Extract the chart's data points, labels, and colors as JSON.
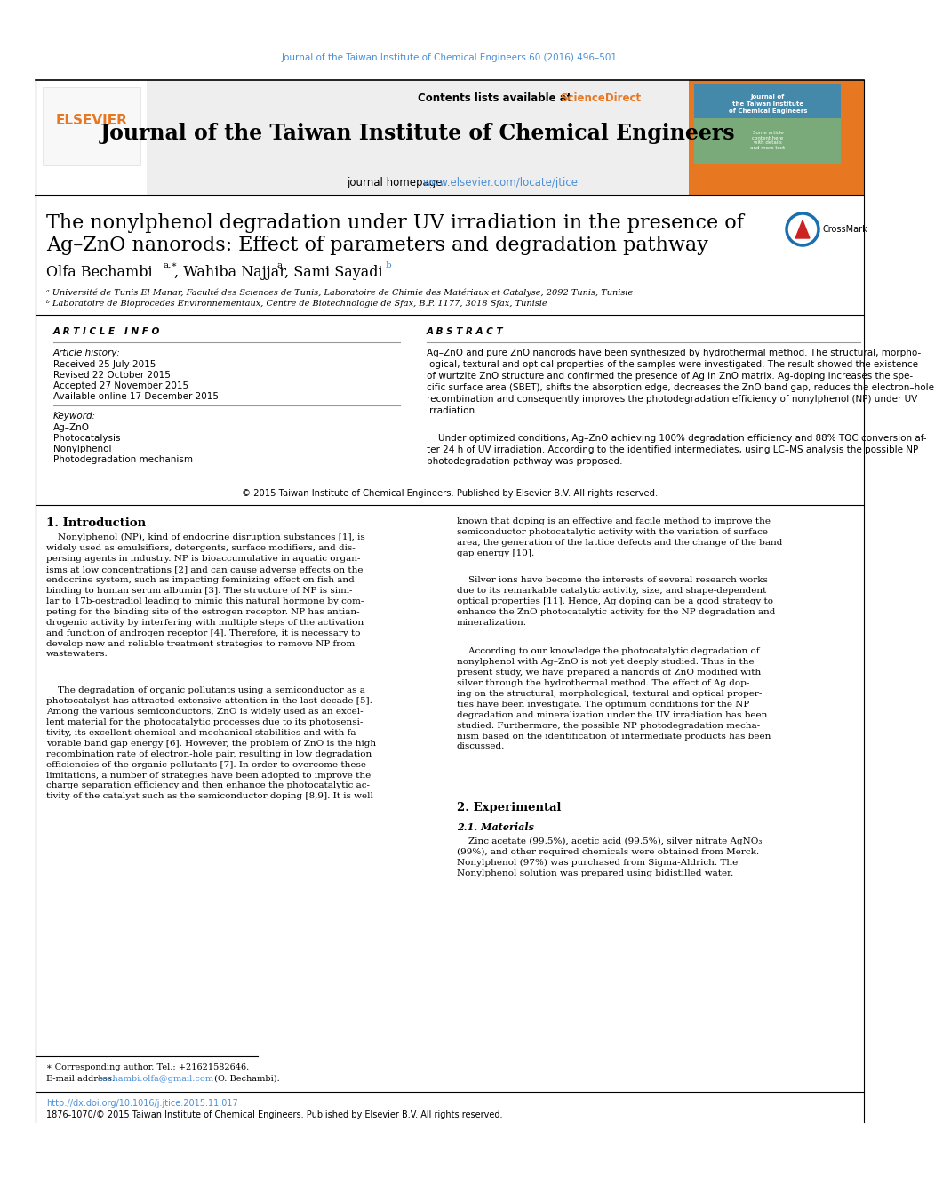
{
  "page_bg": "#ffffff",
  "top_ref": "Journal of the Taiwan Institute of Chemical Engineers 60 (2016) 496–501",
  "top_ref_color": "#4a90d9",
  "journal_title": "Journal of the Taiwan Institute of Chemical Engineers",
  "homepage_label": "journal homepage: ",
  "homepage_url": "www.elsevier.com/locate/jtice",
  "homepage_url_color": "#4a90d9",
  "contents_text": "Contents lists available at ",
  "sciencedirect": "ScienceDirect",
  "sciencedirect_color": "#e87722",
  "elsevier_color": "#e87722",
  "title_line1": "The nonylphenol degradation under UV irradiation in the presence of",
  "title_line2": "Ag–ZnO nanorods: Effect of parameters and degradation pathway",
  "author_line": "Olfa Bechambi",
  "author_sup1": "a,∗",
  "author2": ", Wahiba Najjar",
  "author2_sup": "a",
  "author3": ", Sami Sayadi",
  "author3_sup": "b",
  "affil_a": "ᵃ Université de Tunis El Manar, Faculté des Sciences de Tunis, Laboratoire de Chimie des Matériaux et Catalyse, 2092 Tunis, Tunisie",
  "affil_b": "ᵇ Laboratoire de Bioprocedes Environnementaux, Centre de Biotechnologie de Sfax, B.P. 1177, 3018 Sfax, Tunisie",
  "art_info_title": "A R T I C L E   I N F O",
  "art_history": "Article history:",
  "received": "Received 25 July 2015",
  "revised": "Revised 22 October 2015",
  "accepted": "Accepted 27 November 2015",
  "available": "Available online 17 December 2015",
  "keywords_lbl": "Keyword:",
  "kw1": "Ag–ZnO",
  "kw2": "Photocatalysis",
  "kw3": "Nonylphenol",
  "kw4": "Photodegradation mechanism",
  "abstract_title": "A B S T R A C T",
  "abstract_p1": "Ag–ZnO and pure ZnO nanorods have been synthesized by hydrothermal method. The structural, morpho-\nlogical, textural and optical properties of the samples were investigated. The result showed the existence\nof wurtzite ZnO structure and confirmed the presence of Ag in ZnO matrix. Ag-doping increases the spe-\ncific surface area (SBET), shifts the absorption edge, decreases the ZnO band gap, reduces the electron–hole\nrecombination and consequently improves the photodegradation efficiency of nonylphenol (NP) under UV\nirradiation.",
  "abstract_p2": "    Under optimized conditions, Ag–ZnO achieving 100% degradation efficiency and 88% TOC conversion af-\nter 24 h of UV irradiation. According to the identified intermediates, using LC–MS analysis the possible NP\nphotodegradation pathway was proposed.",
  "abstract_copy": "© 2015 Taiwan Institute of Chemical Engineers. Published by Elsevier B.V. All rights reserved.",
  "intro_title": "1. Introduction",
  "intro_left_p1": "    Nonylphenol (NP), kind of endocrine disruption substances [1], is\nwidely used as emulsifiers, detergents, surface modifiers, and dis-\npersing agents in industry. NP is bioaccumulative in aquatic organ-\nisms at low concentrations [2] and can cause adverse effects on the\nendocrine system, such as impacting feminizing effect on fish and\nbinding to human serum albumin [3]. The structure of NP is simi-\nlar to 17b-oestradiol leading to mimic this natural hormone by com-\npeting for the binding site of the estrogen receptor. NP has antian-\ndrogenic activity by interfering with multiple steps of the activation\nand function of androgen receptor [4]. Therefore, it is necessary to\ndevelop new and reliable treatment strategies to remove NP from\nwastewaters.",
  "intro_left_p2": "    The degradation of organic pollutants using a semiconductor as a\nphotocatalyst has attracted extensive attention in the last decade [5].\nAmong the various semiconductors, ZnO is widely used as an excel-\nlent material for the photocatalytic processes due to its photosensi-\ntivity, its excellent chemical and mechanical stabilities and with fa-\nvorable band gap energy [6]. However, the problem of ZnO is the high\nrecombination rate of electron-hole pair, resulting in low degradation\nefficiencies of the organic pollutants [7]. In order to overcome these\nlimitations, a number of strategies have been adopted to improve the\ncharge separation efficiency and then enhance the photocatalytic ac-\ntivity of the catalyst such as the semiconductor doping [8,9]. It is well",
  "intro_right_p1": "known that doping is an effective and facile method to improve the\nsemiconductor photocatalytic activity with the variation of surface\narea, the generation of the lattice defects and the change of the band\ngap energy [10].",
  "intro_right_p2": "    Silver ions have become the interests of several research works\ndue to its remarkable catalytic activity, size, and shape-dependent\noptical properties [11]. Hence, Ag doping can be a good strategy to\nenhance the ZnO photocatalytic activity for the NP degradation and\nmineralization.",
  "intro_right_p3": "    According to our knowledge the photocatalytic degradation of\nnonylphenol with Ag–ZnO is not yet deeply studied. Thus in the\npresent study, we have prepared a nanords of ZnO modified with\nsilver through the hydrothermal method. The effect of Ag dop-\ning on the structural, morphological, textural and optical proper-\nties have been investigate. The optimum conditions for the NP\ndegradation and mineralization under the UV irradiation has been\nstudied. Furthermore, the possible NP photodegradation mecha-\nnism based on the identification of intermediate products has been\ndiscussed.",
  "sec2_title": "2. Experimental",
  "sec21_title": "2.1. Materials",
  "sec21_text": "    Zinc acetate (99.5%), acetic acid (99.5%), silver nitrate AgNO₃\n(99%), and other required chemicals were obtained from Merck.\nNonylphenol (97%) was purchased from Sigma-Aldrich. The\nNonylphenol solution was prepared using bidistilled water.",
  "footnote1": "∗ Corresponding author. Tel.: +21621582646.",
  "footnote2_label": "E-mail address: ",
  "footnote2_email": "bechambi.olfa@gmail.com",
  "footnote2_email_color": "#4a90d9",
  "footnote2_end": " (O. Bechambi).",
  "doi": "http://dx.doi.org/10.1016/j.jtice.2015.11.017",
  "doi_color": "#4a90d9",
  "issn": "1876-1070/© 2015 Taiwan Institute of Chemical Engineers. Published by Elsevier B.V. All rights reserved."
}
